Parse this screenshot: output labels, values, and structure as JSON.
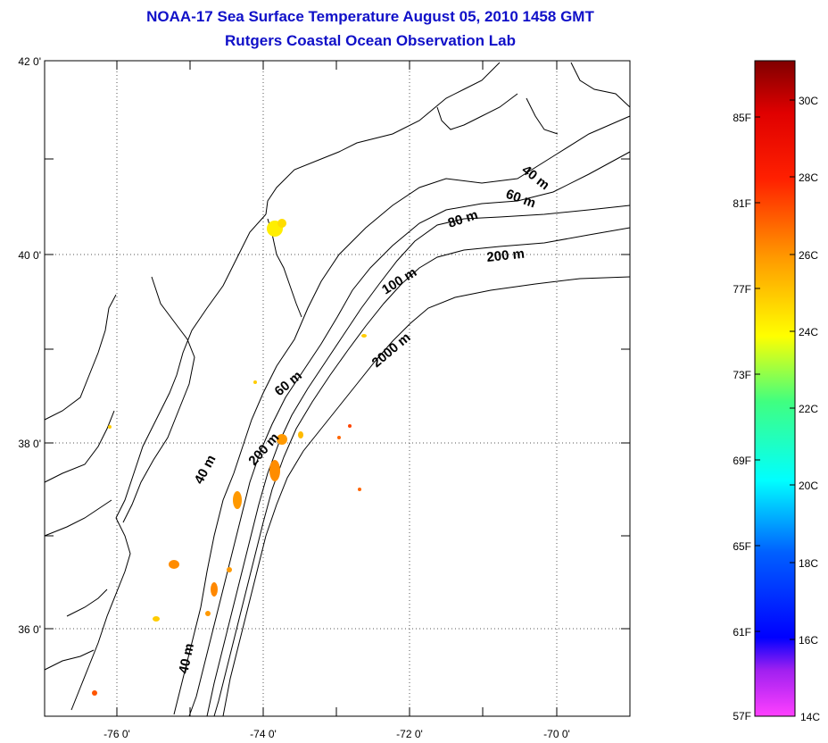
{
  "title": {
    "line1": "NOAA-17 Sea Surface Temperature August 05, 2010 1458 GMT",
    "line2": "Rutgers Coastal Ocean Observation Lab"
  },
  "map": {
    "lat_labels": [
      "42 0'",
      "40 0'",
      "38 0'",
      "36 0'"
    ],
    "lon_labels": [
      "-76 0'",
      "-74 0'",
      "-72 0'",
      "-70 0'"
    ],
    "isobath_labels": [
      "40 m",
      "60 m",
      "80 m",
      "200 m",
      "100 m",
      "2000 m",
      "60 m",
      "200 m",
      "40 m",
      "40 m"
    ],
    "land_color": "#ffffff",
    "coast_color": "#000000"
  },
  "colorbar": {
    "fahrenheit_labels": [
      "85F",
      "81F",
      "77F",
      "73F",
      "69F",
      "65F",
      "61F",
      "57F"
    ],
    "celsius_labels": [
      "30C",
      "28C",
      "26C",
      "24C",
      "22C",
      "20C",
      "18C",
      "16C",
      "14C"
    ],
    "colors": [
      "#8b0000",
      "#ff0000",
      "#ff8000",
      "#ffff00",
      "#80ff00",
      "#00ffff",
      "#0080ff",
      "#0000ff",
      "#8000ff",
      "#ff40ff"
    ]
  }
}
